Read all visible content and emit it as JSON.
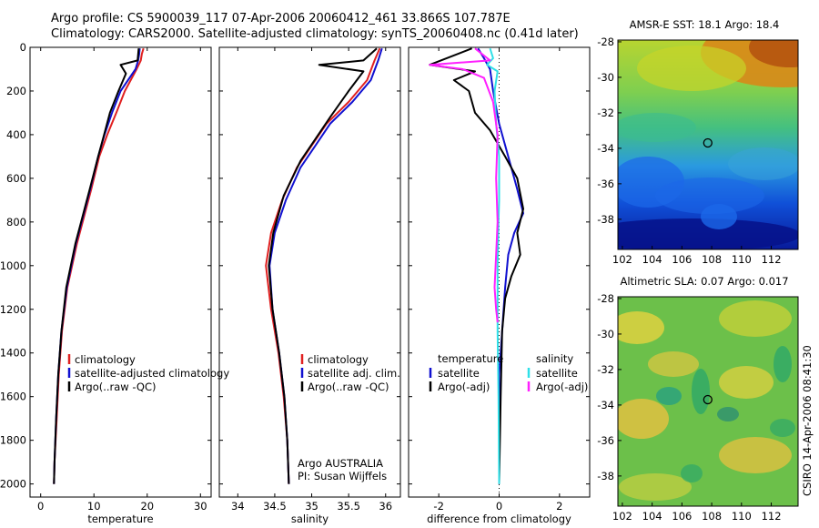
{
  "title_line1": "Argo profile: CS 5900039_117 07-Apr-2006 20060412_461 33.866S 107.787E",
  "title_line2": "Climatology: CARS2000. Satellite-adjusted climatology: synTS_20060408.nc (0.41d later)",
  "credit": "CSIRO 14-Apr-2006 08:41:30",
  "colors": {
    "climatology": "#e02020",
    "satellite": "#1010d0",
    "argo": "#000000",
    "sal_satellite": "#30e0e8",
    "sal_argo": "#ff20ff"
  },
  "chart_data": [
    {
      "type": "line",
      "name": "temperature-profile",
      "xlabel": "temperature",
      "xlim": [
        -2,
        32
      ],
      "xticks": [
        0,
        10,
        20,
        30
      ],
      "ylim": [
        0,
        2060
      ],
      "yticks": [
        0,
        200,
        400,
        600,
        800,
        1000,
        1200,
        1400,
        1600,
        1800,
        2000
      ],
      "legend": [
        "climatology",
        "satellite-adjusted climatology",
        "Argo(..raw -QC)"
      ],
      "legend_location": "lower-right",
      "series": [
        {
          "name": "climatology",
          "color": "#e02020",
          "x": [
            19.3,
            19.0,
            18.8,
            18.0,
            15.8,
            14.2,
            12.5,
            11.0,
            9.5,
            6.8,
            5.0,
            4.0,
            3.4,
            3.0,
            2.6,
            2.5
          ],
          "y": [
            5,
            30,
            60,
            100,
            200,
            300,
            400,
            500,
            650,
            900,
            1100,
            1300,
            1500,
            1700,
            1900,
            2000
          ]
        },
        {
          "name": "satellite-adjusted climatology",
          "color": "#1010d0",
          "x": [
            18.6,
            18.5,
            18.3,
            17.8,
            15.0,
            13.4,
            12.0,
            10.8,
            9.3,
            6.6,
            4.9,
            3.9,
            3.3,
            2.9,
            2.6,
            2.5
          ],
          "y": [
            5,
            30,
            60,
            100,
            200,
            300,
            400,
            500,
            650,
            900,
            1100,
            1300,
            1500,
            1700,
            1900,
            2000
          ]
        },
        {
          "name": "Argo(..raw -QC)",
          "color": "#000000",
          "x": [
            18.4,
            18.2,
            15.0,
            16.0,
            14.6,
            13.0,
            11.9,
            10.8,
            9.2,
            6.5,
            4.8,
            3.9,
            3.3,
            2.9,
            2.6,
            2.5
          ],
          "y": [
            5,
            60,
            80,
            120,
            200,
            300,
            400,
            500,
            650,
            900,
            1100,
            1300,
            1500,
            1700,
            1900,
            2000
          ]
        }
      ]
    },
    {
      "type": "line",
      "name": "salinity-profile",
      "xlabel": "salinity",
      "xlim": [
        33.75,
        36.2
      ],
      "xticks": [
        34,
        34.5,
        35,
        35.5,
        36
      ],
      "ylim": [
        0,
        2060
      ],
      "yticks": [
        0,
        200,
        400,
        600,
        800,
        1000,
        1200,
        1400,
        1600,
        1800,
        2000
      ],
      "legend": [
        "climatology",
        "satellite adj. clim.",
        "Argo(..raw -QC)"
      ],
      "legend_location": "lower-right",
      "annotation": [
        "Argo AUSTRALIA",
        "PI: Susan Wijffels"
      ],
      "series": [
        {
          "name": "climatology",
          "color": "#e02020",
          "x": [
            35.92,
            35.85,
            35.75,
            35.5,
            35.2,
            35.0,
            34.8,
            34.6,
            34.45,
            34.38,
            34.45,
            34.55,
            34.62,
            34.67,
            34.69
          ],
          "y": [
            5,
            60,
            150,
            250,
            350,
            450,
            550,
            700,
            850,
            1000,
            1200,
            1400,
            1600,
            1800,
            2000
          ]
        },
        {
          "name": "satellite adj. clim.",
          "color": "#1010d0",
          "x": [
            35.95,
            35.9,
            35.8,
            35.55,
            35.25,
            35.05,
            34.85,
            34.65,
            34.5,
            34.43,
            34.47,
            34.56,
            34.63,
            34.67,
            34.69
          ],
          "y": [
            5,
            60,
            150,
            250,
            350,
            450,
            550,
            700,
            850,
            1000,
            1200,
            1400,
            1600,
            1800,
            2000
          ]
        },
        {
          "name": "Argo(..raw -QC)",
          "color": "#000000",
          "x": [
            35.88,
            35.7,
            35.1,
            35.7,
            35.5,
            35.25,
            35.05,
            34.85,
            34.62,
            34.48,
            34.42,
            34.47,
            34.56,
            34.63,
            34.67,
            34.69
          ],
          "y": [
            5,
            60,
            80,
            110,
            200,
            320,
            420,
            520,
            680,
            850,
            1000,
            1200,
            1400,
            1600,
            1800,
            2000
          ]
        }
      ]
    },
    {
      "type": "line",
      "name": "difference-profile",
      "xlabel": "difference from climatology",
      "xlim": [
        -3.0,
        3.0
      ],
      "xticks": [
        -2,
        0,
        2
      ],
      "ylim": [
        0,
        2060
      ],
      "yticks": [
        0,
        200,
        400,
        600,
        800,
        1000,
        1200,
        1400,
        1600,
        1800,
        2000
      ],
      "legend_groups": [
        {
          "heading": "temperature",
          "entries": [
            "satellite",
            "Argo(-adj)"
          ]
        },
        {
          "heading": "salinity",
          "entries": [
            "satellite",
            "Argo(-adj)"
          ]
        }
      ],
      "legend_location": "lower-right",
      "series": [
        {
          "name": "temperature satellite",
          "color": "#1010d0",
          "x": [
            -0.7,
            -0.5,
            -0.3,
            -0.2,
            0.0,
            0.3,
            0.6,
            0.8,
            0.5,
            0.3,
            0.2,
            0.1,
            0.0,
            0.0,
            0.0
          ],
          "y": [
            5,
            50,
            100,
            200,
            350,
            500,
            650,
            760,
            850,
            950,
            1100,
            1300,
            1500,
            1800,
            2000
          ]
        },
        {
          "name": "temperature Argo(-adj)",
          "color": "#000000",
          "x": [
            -0.9,
            -2.3,
            -0.8,
            -1.5,
            -1.0,
            -0.8,
            -0.3,
            0.2,
            0.6,
            0.8,
            0.6,
            0.7,
            0.4,
            0.2,
            0.1,
            0.05,
            0.0
          ],
          "y": [
            5,
            80,
            110,
            150,
            200,
            300,
            380,
            500,
            600,
            740,
            850,
            950,
            1050,
            1150,
            1300,
            1600,
            2000
          ]
        },
        {
          "name": "salinity satellite",
          "color": "#30e0e8",
          "x": [
            -0.3,
            -0.2,
            -0.4,
            -0.05,
            -0.15,
            -0.1,
            0.0,
            0.0,
            -0.02,
            -0.05,
            -0.05,
            -0.02,
            0.0
          ],
          "y": [
            5,
            50,
            80,
            110,
            200,
            350,
            500,
            700,
            800,
            1000,
            1300,
            1600,
            2000
          ]
        },
        {
          "name": "salinity Argo(-adj)",
          "color": "#ff20ff",
          "x": [
            -0.8,
            -0.3,
            -2.3,
            -1.2,
            -0.5,
            -0.2,
            -0.05,
            -0.1,
            -0.05,
            -0.1,
            -0.15,
            -0.1,
            -0.05
          ],
          "y": [
            5,
            60,
            80,
            100,
            140,
            250,
            400,
            600,
            800,
            950,
            1100,
            1200,
            1260
          ]
        }
      ]
    },
    {
      "type": "heatmap",
      "name": "amsr-sst-map",
      "title": "AMSR-E SST: 18.1 Argo: 18.4",
      "xlim": [
        101.7,
        113.8
      ],
      "ylim": [
        -39.7,
        -27.9
      ],
      "xticks": [
        102,
        104,
        106,
        108,
        110,
        112
      ],
      "yticks": [
        -28,
        -30,
        -32,
        -34,
        -36,
        -38
      ],
      "argo_position": [
        107.787,
        -33.866
      ]
    },
    {
      "type": "heatmap",
      "name": "altimetric-sla-map",
      "title": "Altimetric SLA: 0.07 Argo: 0.017",
      "xlim": [
        101.7,
        113.8
      ],
      "ylim": [
        -39.7,
        -27.9
      ],
      "xticks": [
        102,
        104,
        106,
        108,
        110,
        112
      ],
      "yticks": [
        -28,
        -30,
        -32,
        -34,
        -36,
        -38
      ],
      "argo_position": [
        107.787,
        -33.866
      ]
    }
  ]
}
